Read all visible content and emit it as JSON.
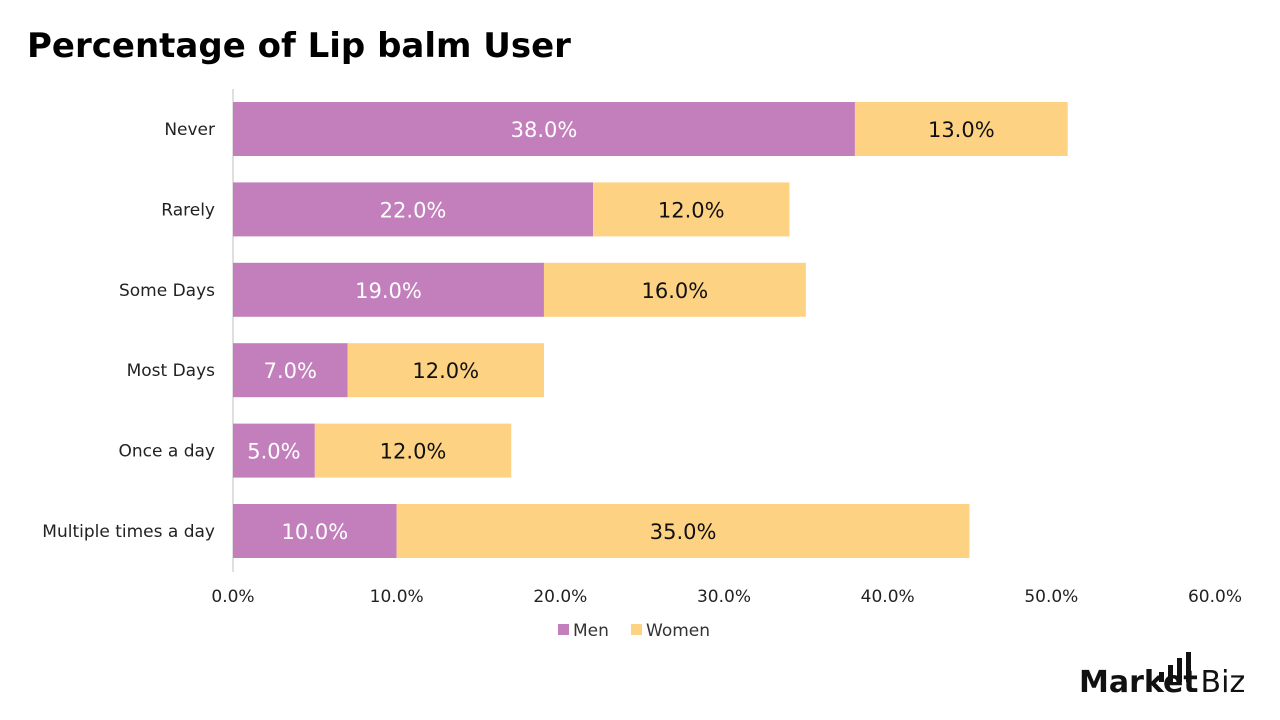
{
  "title": "Percentage of Lip balm User",
  "brand": {
    "name": "Market",
    "suffix": ".Biz"
  },
  "colors": {
    "men": "#c27fbc",
    "women": "#fdd383",
    "men_label": "#ffffff",
    "women_label": "#111111",
    "axis": "#bfbfbf"
  },
  "chart_data": {
    "type": "bar",
    "orientation": "horizontal",
    "stacked": true,
    "title": "Percentage of Lip balm User",
    "categories": [
      "Never",
      "Rarely",
      "Some Days",
      "Most Days",
      "Once a day",
      "Multiple times a day"
    ],
    "series": [
      {
        "name": "Men",
        "values": [
          38.0,
          22.0,
          19.0,
          7.0,
          5.0,
          10.0
        ]
      },
      {
        "name": "Women",
        "values": [
          13.0,
          12.0,
          16.0,
          12.0,
          12.0,
          35.0
        ]
      }
    ],
    "value_labels": [
      [
        "38.0%",
        "22.0%",
        "19.0%",
        "7.0%",
        "5.0%",
        "10.0%"
      ],
      [
        "13.0%",
        "12.0%",
        "16.0%",
        "12.0%",
        "12.0%",
        "35.0%"
      ]
    ],
    "xlim": [
      0,
      60
    ],
    "x_ticks": [
      "0.0%",
      "10.0%",
      "20.0%",
      "30.0%",
      "40.0%",
      "50.0%",
      "60.0%"
    ],
    "grid": false,
    "legend": "bottom"
  }
}
